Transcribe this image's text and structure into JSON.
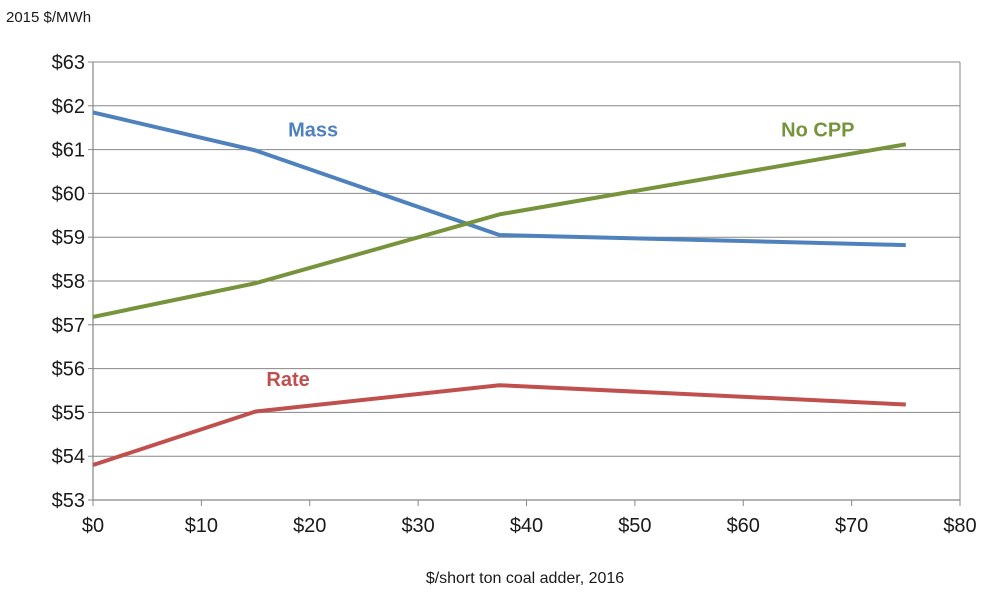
{
  "chart_data": {
    "type": "line",
    "unit_label": "2015 $/MWh",
    "xlabel": "$/short ton coal adder, 2016",
    "xlim": [
      0,
      80
    ],
    "ylim": [
      53,
      63
    ],
    "x_ticks": [
      0,
      10,
      20,
      30,
      40,
      50,
      60,
      70,
      80
    ],
    "x_tick_labels": [
      "$0",
      "$10",
      "$20",
      "$30",
      "$40",
      "$50",
      "$60",
      "$70",
      "$80"
    ],
    "y_ticks": [
      53,
      54,
      55,
      56,
      57,
      58,
      59,
      60,
      61,
      62,
      63
    ],
    "y_tick_labels": [
      "$53",
      "$54",
      "$55",
      "$56",
      "$57",
      "$58",
      "$59",
      "$60",
      "$61",
      "$62",
      "$63"
    ],
    "grid": true,
    "legend": "none",
    "series": [
      {
        "name": "Mass",
        "color": "#4f81bd",
        "points": [
          [
            0,
            61.85
          ],
          [
            15,
            60.98
          ],
          [
            37.5,
            59.05
          ],
          [
            75,
            58.82
          ]
        ],
        "label_anchor": [
          18,
          61.3
        ]
      },
      {
        "name": "No CPP",
        "color": "#77933c",
        "points": [
          [
            0,
            57.18
          ],
          [
            15,
            57.95
          ],
          [
            37.5,
            59.52
          ],
          [
            75,
            61.12
          ]
        ],
        "label_anchor": [
          63.5,
          61.3
        ]
      },
      {
        "name": "Rate",
        "color": "#c0504d",
        "points": [
          [
            0,
            53.8
          ],
          [
            15,
            55.02
          ],
          [
            37.5,
            55.62
          ],
          [
            75,
            55.18
          ]
        ],
        "label_anchor": [
          16,
          55.6
        ]
      }
    ]
  }
}
